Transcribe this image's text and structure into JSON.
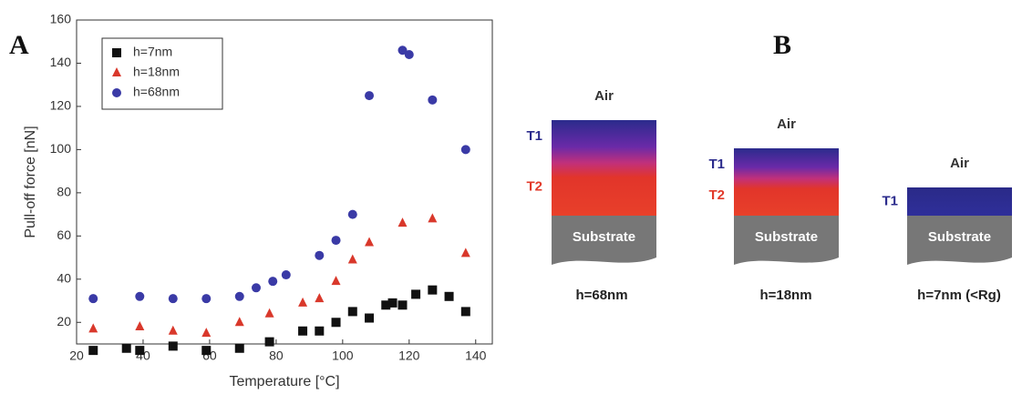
{
  "chart_data": {
    "type": "scatter",
    "xlabel": "Temperature [°C]",
    "ylabel": "Pull-off force [nN]",
    "xlim": [
      20,
      145
    ],
    "ylim": [
      10,
      160
    ],
    "xticks": [
      20,
      40,
      60,
      80,
      100,
      120,
      140
    ],
    "yticks": [
      20,
      40,
      60,
      80,
      100,
      120,
      140,
      160
    ],
    "legend": "upper left",
    "series": [
      {
        "name": "h=7nm",
        "color": "#111111",
        "marker": "square",
        "x": [
          25,
          35,
          39,
          49,
          59,
          69,
          78,
          88,
          93,
          98,
          103,
          108,
          113,
          115,
          118,
          122,
          127,
          132,
          137
        ],
        "values": [
          7,
          8,
          7,
          9,
          7,
          8,
          11,
          16,
          16,
          20,
          25,
          22,
          28,
          29,
          28,
          33,
          35,
          32,
          25
        ]
      },
      {
        "name": "h=18nm",
        "color": "#d9382b",
        "marker": "triangle",
        "x": [
          25,
          39,
          49,
          59,
          69,
          78,
          88,
          93,
          98,
          103,
          108,
          118,
          127,
          137
        ],
        "values": [
          17,
          18,
          16,
          15,
          20,
          24,
          29,
          31,
          39,
          49,
          57,
          66,
          68,
          52
        ]
      },
      {
        "name": "h=68nm",
        "color": "#3a3aa6",
        "marker": "circle",
        "x": [
          25,
          39,
          49,
          59,
          69,
          74,
          79,
          83,
          93,
          98,
          103,
          108,
          118,
          120,
          127,
          137
        ],
        "values": [
          31,
          32,
          31,
          31,
          32,
          36,
          39,
          42,
          51,
          58,
          70,
          125,
          146,
          144,
          123,
          100
        ]
      }
    ]
  },
  "panel_labels": [
    "A",
    "B"
  ],
  "diagram": {
    "stacks": [
      {
        "air": "Air",
        "layers": [
          "T1",
          "T2"
        ],
        "substrate": "Substrate",
        "caption": "h=68nm"
      },
      {
        "air": "Air",
        "layers": [
          "T1",
          "T2"
        ],
        "substrate": "Substrate",
        "caption": "h=18nm"
      },
      {
        "air": "Air",
        "layers": [
          "T1"
        ],
        "substrate": "Substrate",
        "caption": "h=7nm (<Rg)"
      }
    ]
  }
}
